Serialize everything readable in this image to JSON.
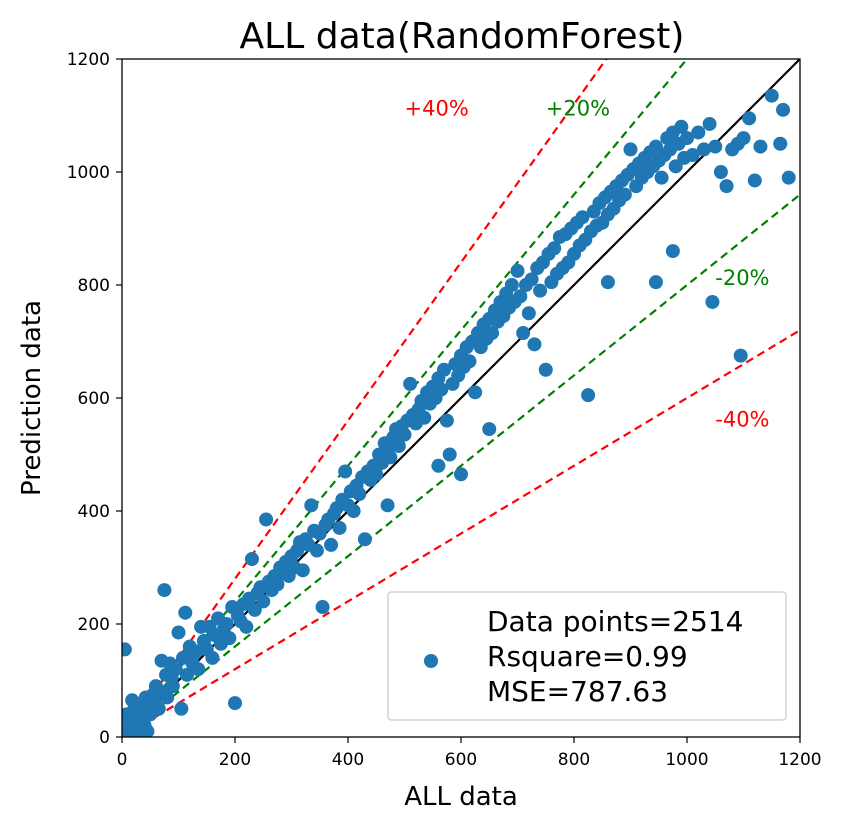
{
  "chart_data": {
    "type": "scatter",
    "title": "ALL data(RandomForest)",
    "xlabel": "ALL data",
    "ylabel": "Prediction data",
    "xlim": [
      0,
      1200
    ],
    "ylim": [
      0,
      1200
    ],
    "xticks": [
      0,
      200,
      400,
      600,
      800,
      1000,
      1200
    ],
    "yticks": [
      0,
      200,
      400,
      600,
      800,
      1000,
      1200
    ],
    "grid": false,
    "marker_color": "#1f77b4",
    "reference_lines": [
      {
        "label": "+40%",
        "slope": 1.4,
        "color": "#ff0000",
        "style": "dashed"
      },
      {
        "label": "+20%",
        "slope": 1.2,
        "color": "#008000",
        "style": "dashed"
      },
      {
        "label": "",
        "slope": 1.0,
        "color": "#000000",
        "style": "solid"
      },
      {
        "label": "-20%",
        "slope": 0.8,
        "color": "#008000",
        "style": "dashed"
      },
      {
        "label": "-40%",
        "slope": 0.6,
        "color": "#ff0000",
        "style": "dashed"
      }
    ],
    "annotations": [
      {
        "text": "+40%",
        "x": 500,
        "y": 1100,
        "color": "#ff0000"
      },
      {
        "text": "+20%",
        "x": 750,
        "y": 1100,
        "color": "#008000"
      },
      {
        "text": "-20%",
        "x": 1050,
        "y": 800,
        "color": "#008000"
      },
      {
        "text": "-40%",
        "x": 1050,
        "y": 550,
        "color": "#ff0000"
      }
    ],
    "legend": {
      "position": "lower-right",
      "lines": [
        "Data points=2514",
        "Rsquare=0.99",
        "MSE=787.63"
      ]
    },
    "series": [
      {
        "marker": "circle",
        "points": [
          [
            5,
            155
          ],
          [
            8,
            40
          ],
          [
            10,
            20
          ],
          [
            12,
            5
          ],
          [
            15,
            10
          ],
          [
            18,
            65
          ],
          [
            20,
            30
          ],
          [
            22,
            50
          ],
          [
            25,
            15
          ],
          [
            28,
            45
          ],
          [
            30,
            25
          ],
          [
            32,
            8
          ],
          [
            35,
            60
          ],
          [
            38,
            35
          ],
          [
            40,
            20
          ],
          [
            42,
            70
          ],
          [
            45,
            10
          ],
          [
            48,
            55
          ],
          [
            50,
            40
          ],
          [
            55,
            75
          ],
          [
            58,
            60
          ],
          [
            60,
            90
          ],
          [
            65,
            50
          ],
          [
            70,
            135
          ],
          [
            72,
            80
          ],
          [
            75,
            260
          ],
          [
            78,
            110
          ],
          [
            80,
            70
          ],
          [
            85,
            130
          ],
          [
            88,
            105
          ],
          [
            90,
            90
          ],
          [
            95,
            120
          ],
          [
            100,
            185
          ],
          [
            105,
            50
          ],
          [
            108,
            140
          ],
          [
            112,
            220
          ],
          [
            115,
            110
          ],
          [
            120,
            160
          ],
          [
            125,
            130
          ],
          [
            130,
            150
          ],
          [
            135,
            120
          ],
          [
            140,
            195
          ],
          [
            145,
            170
          ],
          [
            150,
            155
          ],
          [
            155,
            195
          ],
          [
            160,
            140
          ],
          [
            165,
            180
          ],
          [
            170,
            210
          ],
          [
            175,
            165
          ],
          [
            180,
            190
          ],
          [
            185,
            200
          ],
          [
            190,
            175
          ],
          [
            195,
            230
          ],
          [
            200,
            60
          ],
          [
            205,
            215
          ],
          [
            210,
            205
          ],
          [
            215,
            235
          ],
          [
            220,
            195
          ],
          [
            225,
            245
          ],
          [
            230,
            315
          ],
          [
            235,
            225
          ],
          [
            240,
            255
          ],
          [
            245,
            265
          ],
          [
            250,
            240
          ],
          [
            255,
            385
          ],
          [
            260,
            275
          ],
          [
            265,
            260
          ],
          [
            270,
            285
          ],
          [
            275,
            270
          ],
          [
            280,
            300
          ],
          [
            285,
            290
          ],
          [
            290,
            310
          ],
          [
            295,
            285
          ],
          [
            300,
            320
          ],
          [
            305,
            300
          ],
          [
            310,
            330
          ],
          [
            315,
            345
          ],
          [
            320,
            295
          ],
          [
            325,
            350
          ],
          [
            330,
            340
          ],
          [
            335,
            410
          ],
          [
            340,
            365
          ],
          [
            345,
            330
          ],
          [
            350,
            360
          ],
          [
            355,
            230
          ],
          [
            360,
            375
          ],
          [
            365,
            385
          ],
          [
            370,
            340
          ],
          [
            375,
            395
          ],
          [
            380,
            405
          ],
          [
            385,
            370
          ],
          [
            390,
            420
          ],
          [
            395,
            470
          ],
          [
            400,
            410
          ],
          [
            405,
            435
          ],
          [
            410,
            400
          ],
          [
            415,
            445
          ],
          [
            420,
            430
          ],
          [
            425,
            460
          ],
          [
            430,
            350
          ],
          [
            435,
            470
          ],
          [
            440,
            455
          ],
          [
            445,
            480
          ],
          [
            450,
            465
          ],
          [
            455,
            500
          ],
          [
            460,
            485
          ],
          [
            465,
            520
          ],
          [
            470,
            510
          ],
          [
            475,
            495
          ],
          [
            480,
            530
          ],
          [
            485,
            545
          ],
          [
            490,
            515
          ],
          [
            495,
            550
          ],
          [
            500,
            535
          ],
          [
            505,
            560
          ],
          [
            510,
            625
          ],
          [
            515,
            570
          ],
          [
            520,
            555
          ],
          [
            525,
            580
          ],
          [
            530,
            595
          ],
          [
            535,
            565
          ],
          [
            540,
            610
          ],
          [
            545,
            590
          ],
          [
            550,
            620
          ],
          [
            555,
            600
          ],
          [
            560,
            635
          ],
          [
            565,
            615
          ],
          [
            570,
            650
          ],
          [
            575,
            560
          ],
          [
            580,
            500
          ],
          [
            585,
            625
          ],
          [
            590,
            660
          ],
          [
            595,
            640
          ],
          [
            600,
            675
          ],
          [
            605,
            655
          ],
          [
            610,
            690
          ],
          [
            615,
            665
          ],
          [
            620,
            700
          ],
          [
            625,
            610
          ],
          [
            630,
            715
          ],
          [
            635,
            690
          ],
          [
            640,
            730
          ],
          [
            645,
            705
          ],
          [
            650,
            740
          ],
          [
            655,
            715
          ],
          [
            660,
            755
          ],
          [
            665,
            735
          ],
          [
            670,
            770
          ],
          [
            675,
            745
          ],
          [
            680,
            785
          ],
          [
            685,
            760
          ],
          [
            690,
            800
          ],
          [
            695,
            770
          ],
          [
            700,
            825
          ],
          [
            705,
            780
          ],
          [
            710,
            715
          ],
          [
            715,
            800
          ],
          [
            720,
            750
          ],
          [
            725,
            810
          ],
          [
            730,
            695
          ],
          [
            735,
            830
          ],
          [
            740,
            790
          ],
          [
            745,
            840
          ],
          [
            750,
            650
          ],
          [
            755,
            855
          ],
          [
            760,
            805
          ],
          [
            765,
            865
          ],
          [
            770,
            820
          ],
          [
            775,
            885
          ],
          [
            780,
            830
          ],
          [
            785,
            890
          ],
          [
            790,
            840
          ],
          [
            795,
            900
          ],
          [
            800,
            855
          ],
          [
            805,
            910
          ],
          [
            810,
            870
          ],
          [
            815,
            920
          ],
          [
            820,
            880
          ],
          [
            825,
            605
          ],
          [
            830,
            895
          ],
          [
            835,
            930
          ],
          [
            840,
            905
          ],
          [
            845,
            945
          ],
          [
            850,
            910
          ],
          [
            855,
            955
          ],
          [
            860,
            925
          ],
          [
            865,
            965
          ],
          [
            870,
            935
          ],
          [
            875,
            975
          ],
          [
            880,
            950
          ],
          [
            885,
            985
          ],
          [
            890,
            960
          ],
          [
            895,
            995
          ],
          [
            900,
            1040
          ],
          [
            905,
            1005
          ],
          [
            910,
            975
          ],
          [
            915,
            1015
          ],
          [
            920,
            990
          ],
          [
            925,
            1025
          ],
          [
            930,
            1000
          ],
          [
            935,
            1035
          ],
          [
            940,
            1010
          ],
          [
            945,
            1045
          ],
          [
            950,
            1020
          ],
          [
            955,
            990
          ],
          [
            960,
            1030
          ],
          [
            965,
            1060
          ],
          [
            970,
            1040
          ],
          [
            975,
            1070
          ],
          [
            980,
            1010
          ],
          [
            985,
            1050
          ],
          [
            990,
            1080
          ],
          [
            995,
            1025
          ],
          [
            1000,
            1060
          ],
          [
            1010,
            1030
          ],
          [
            1020,
            1070
          ],
          [
            1030,
            1040
          ],
          [
            1040,
            1085
          ],
          [
            1050,
            1045
          ],
          [
            1060,
            1000
          ],
          [
            1070,
            975
          ],
          [
            1080,
            1040
          ],
          [
            1090,
            1050
          ],
          [
            1100,
            1060
          ],
          [
            1110,
            1095
          ],
          [
            1120,
            985
          ],
          [
            1130,
            1045
          ],
          [
            1150,
            1135
          ],
          [
            1165,
            1050
          ],
          [
            1170,
            1110
          ],
          [
            1180,
            990
          ],
          [
            1095,
            675
          ],
          [
            1045,
            770
          ],
          [
            975,
            860
          ],
          [
            945,
            805
          ],
          [
            860,
            805
          ],
          [
            650,
            545
          ],
          [
            600,
            465
          ],
          [
            560,
            480
          ],
          [
            470,
            410
          ]
        ]
      }
    ]
  }
}
